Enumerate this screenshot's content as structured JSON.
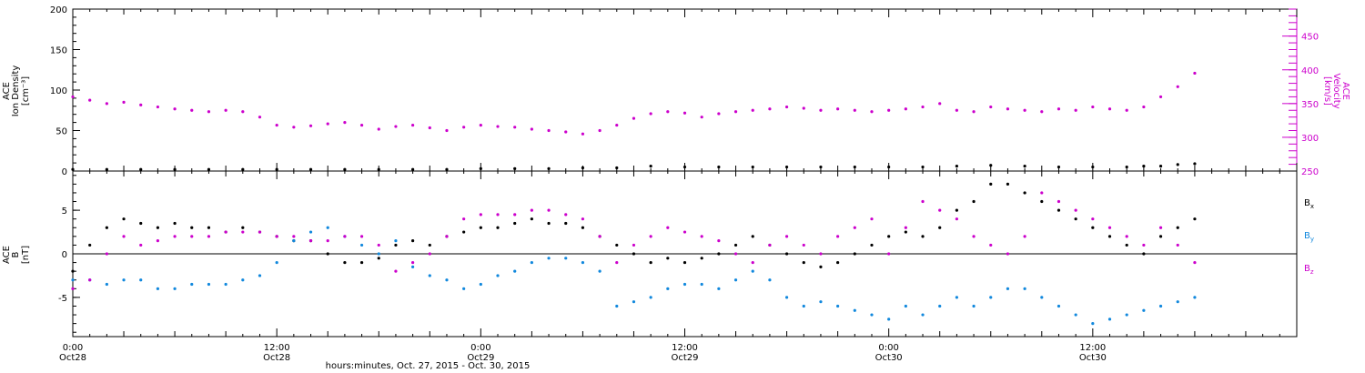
{
  "colors": {
    "axis": "#000000",
    "density": "#000000",
    "velocity": "#cc00cc",
    "bx": "#000000",
    "by": "#1188dd",
    "bz": "#cc00cc"
  },
  "x_axis": {
    "title": "hours:minutes, Oct. 27, 2015 - Oct. 30, 2015",
    "range_hours": [
      0,
      72
    ],
    "ticks": [
      {
        "hour": 0,
        "time": "0:00",
        "date": "Oct28"
      },
      {
        "hour": 12,
        "time": "12:00",
        "date": "Oct28"
      },
      {
        "hour": 24,
        "time": "0:00",
        "date": "Oct29"
      },
      {
        "hour": 36,
        "time": "12:00",
        "date": "Oct29"
      },
      {
        "hour": 48,
        "time": "0:00",
        "date": "Oct30"
      },
      {
        "hour": 60,
        "time": "12:00",
        "date": "Oct30"
      }
    ]
  },
  "chart_data": [
    {
      "type": "scatter",
      "panel": "top",
      "left_axis": {
        "label_lines": [
          "ACE",
          "Ion Density",
          "[cm⁻³]"
        ],
        "ylim": [
          0,
          200
        ],
        "ticks": [
          0,
          50,
          100,
          150,
          200
        ],
        "tick_labels": [
          "0",
          "50",
          "100",
          "150",
          "200"
        ]
      },
      "right_axis": {
        "label_lines": [
          "ACE",
          "Velocity",
          "[km/s]"
        ],
        "ylim": [
          250,
          490
        ],
        "ticks": [
          250,
          300,
          350,
          400,
          450
        ],
        "tick_labels": [
          "250",
          "300",
          "350",
          "400",
          "450"
        ]
      },
      "series": [
        {
          "key": "density",
          "axis": "left",
          "x": [
            0,
            2,
            4,
            6,
            8,
            10,
            12,
            14,
            16,
            18,
            20,
            22,
            24,
            26,
            28,
            30,
            32,
            34,
            36,
            38,
            40,
            42,
            44,
            46,
            48,
            50,
            52,
            54,
            56,
            58,
            60,
            62,
            63,
            64,
            65,
            66
          ],
          "y": [
            2,
            2,
            2,
            2,
            2,
            2,
            2,
            2,
            2,
            2,
            2,
            2,
            3,
            3,
            3,
            4,
            4,
            6,
            5,
            5,
            5,
            5,
            5,
            5,
            5,
            5,
            6,
            7,
            6,
            5,
            5,
            5,
            6,
            6,
            8,
            9
          ]
        },
        {
          "key": "velocity",
          "axis": "right",
          "x": [
            0,
            1,
            2,
            3,
            4,
            5,
            6,
            7,
            8,
            9,
            10,
            11,
            12,
            13,
            14,
            15,
            16,
            17,
            18,
            19,
            20,
            21,
            22,
            23,
            24,
            25,
            26,
            27,
            28,
            29,
            30,
            31,
            32,
            33,
            34,
            35,
            36,
            37,
            38,
            39,
            40,
            41,
            42,
            43,
            44,
            45,
            46,
            47,
            48,
            49,
            50,
            51,
            52,
            53,
            54,
            55,
            56,
            57,
            58,
            59,
            60,
            61,
            62,
            63,
            64,
            65,
            66
          ],
          "y": [
            360,
            355,
            350,
            352,
            348,
            345,
            342,
            340,
            338,
            340,
            338,
            330,
            318,
            315,
            317,
            320,
            322,
            318,
            312,
            316,
            318,
            314,
            310,
            315,
            318,
            316,
            315,
            312,
            310,
            308,
            305,
            310,
            318,
            328,
            335,
            338,
            336,
            330,
            335,
            338,
            340,
            342,
            345,
            343,
            340,
            342,
            340,
            338,
            340,
            342,
            345,
            350,
            340,
            338,
            345,
            342,
            340,
            338,
            342,
            340,
            345,
            342,
            340,
            345,
            360,
            375,
            395
          ]
        }
      ]
    },
    {
      "type": "scatter",
      "panel": "bottom",
      "left_axis": {
        "label_lines": [
          "ACE",
          "B",
          "[nT]"
        ],
        "ylim": [
          -9.5,
          9.5
        ],
        "ticks": [
          -5,
          0,
          5
        ],
        "tick_labels": [
          "-5",
          "0",
          "5"
        ],
        "zero_line": true
      },
      "series": [
        {
          "key": "bx",
          "name": "B",
          "subscript": "x",
          "x": [
            0,
            1,
            2,
            3,
            4,
            5,
            6,
            7,
            8,
            9,
            10,
            11,
            12,
            13,
            14,
            15,
            16,
            17,
            18,
            19,
            20,
            21,
            22,
            23,
            24,
            25,
            26,
            27,
            28,
            29,
            30,
            31,
            32,
            33,
            34,
            35,
            36,
            37,
            38,
            39,
            40,
            41,
            42,
            43,
            44,
            45,
            46,
            47,
            48,
            49,
            50,
            51,
            52,
            53,
            54,
            55,
            56,
            57,
            58,
            59,
            60,
            61,
            62,
            63,
            64,
            65,
            66
          ],
          "y": [
            -2,
            1,
            3,
            4,
            3.5,
            3,
            3.5,
            3,
            3,
            2.5,
            3,
            2.5,
            2,
            1.5,
            1.5,
            0,
            -1,
            -1,
            -0.5,
            1,
            1.5,
            1,
            2,
            2.5,
            3,
            3,
            3.5,
            4,
            3.5,
            3.5,
            3,
            2,
            1,
            0,
            -1,
            -0.5,
            -1,
            -0.5,
            0,
            1,
            2,
            1,
            0,
            -1,
            -1.5,
            -1,
            0,
            1,
            2,
            2.5,
            2,
            3,
            5,
            6,
            8,
            8,
            7,
            6,
            5,
            4,
            3,
            2,
            1,
            0,
            2,
            3,
            4
          ]
        },
        {
          "key": "by",
          "name": "B",
          "subscript": "y",
          "x": [
            0,
            1,
            2,
            3,
            4,
            5,
            6,
            7,
            8,
            9,
            10,
            11,
            12,
            13,
            14,
            15,
            16,
            17,
            18,
            19,
            20,
            21,
            22,
            23,
            24,
            25,
            26,
            27,
            28,
            29,
            30,
            31,
            32,
            33,
            34,
            35,
            36,
            37,
            38,
            39,
            40,
            41,
            42,
            43,
            44,
            45,
            46,
            47,
            48,
            49,
            50,
            51,
            52,
            53,
            54,
            55,
            56,
            57,
            58,
            59,
            60,
            61,
            62,
            63,
            64,
            65,
            66
          ],
          "y": [
            -3,
            -3,
            -3.5,
            -3,
            -3,
            -4,
            -4,
            -3.5,
            -3.5,
            -3.5,
            -3,
            -2.5,
            -1,
            1.5,
            2.5,
            3,
            2,
            1,
            0,
            1.5,
            -1.5,
            -2.5,
            -3,
            -4,
            -3.5,
            -2.5,
            -2,
            -1,
            -0.5,
            -0.5,
            -1,
            -2,
            -6,
            -5.5,
            -5,
            -4,
            -3.5,
            -3.5,
            -4,
            -3,
            -2,
            -3,
            -5,
            -6,
            -5.5,
            -6,
            -6.5,
            -7,
            -7.5,
            -6,
            -7,
            -6,
            -5,
            -6,
            -5,
            -4,
            -4,
            -5,
            -6,
            -7,
            -8,
            -7.5,
            -7,
            -6.5,
            -6,
            -5.5,
            -5
          ]
        },
        {
          "key": "bz",
          "name": "B",
          "subscript": "z",
          "x": [
            0,
            1,
            2,
            3,
            4,
            5,
            6,
            7,
            8,
            9,
            10,
            11,
            12,
            13,
            14,
            15,
            16,
            17,
            18,
            19,
            20,
            21,
            22,
            23,
            24,
            25,
            26,
            27,
            28,
            29,
            30,
            31,
            32,
            33,
            34,
            35,
            36,
            37,
            38,
            39,
            40,
            41,
            42,
            43,
            44,
            45,
            46,
            47,
            48,
            49,
            50,
            51,
            52,
            53,
            54,
            55,
            56,
            57,
            58,
            59,
            60,
            61,
            62,
            63,
            64,
            65,
            66
          ],
          "y": [
            -4,
            -3,
            0,
            2,
            1,
            1.5,
            2,
            2,
            2,
            2.5,
            2.5,
            2.5,
            2,
            2,
            1.5,
            1.5,
            2,
            2,
            1,
            -2,
            -1,
            0,
            2,
            4,
            4.5,
            4.5,
            4.5,
            5,
            5,
            4.5,
            4,
            2,
            -1,
            1,
            2,
            3,
            2.5,
            2,
            1.5,
            0,
            -1,
            1,
            2,
            1,
            0,
            2,
            3,
            4,
            0,
            3,
            6,
            5,
            4,
            2,
            1,
            0,
            2,
            7,
            6,
            5,
            4,
            3,
            2,
            1,
            3,
            1,
            -1
          ]
        }
      ]
    }
  ]
}
